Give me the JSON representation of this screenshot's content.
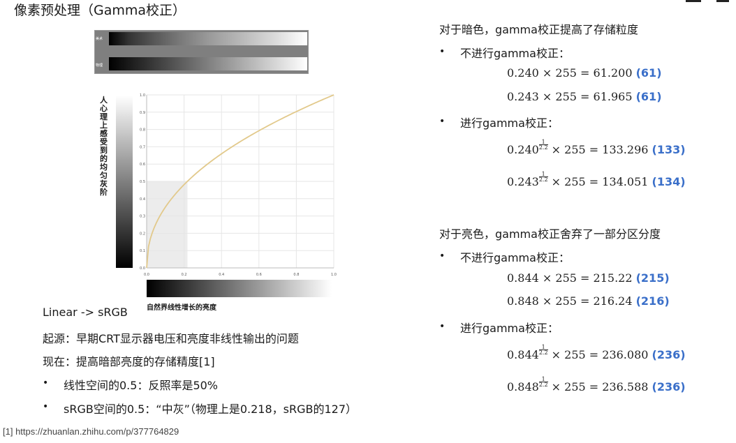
{
  "title": "像素预处理（Gamma校正）",
  "top_bars": {
    "top_label": "美术",
    "bottom_label": "物理"
  },
  "chart": {
    "ylabel": "人心理上感受到的均匀灰阶",
    "xlabel": "自然界线性增长的亮度"
  },
  "chart_data": {
    "type": "line",
    "xlim": [
      0,
      1.0
    ],
    "ylim": [
      0,
      1.0
    ],
    "xticks": [
      "0.0",
      "0.2",
      "0.4",
      "0.6",
      "0.8",
      "1.0"
    ],
    "yticks": [
      "0.0",
      "0.1",
      "0.2",
      "0.3",
      "0.4",
      "0.5",
      "0.6",
      "0.7",
      "0.8",
      "0.9",
      "1.0"
    ],
    "grid": true,
    "gamma": 2.2,
    "curve_color": "#e2c98b",
    "highlight": {
      "x": 0.218,
      "y": 0.5
    }
  },
  "left": {
    "heading": "Linear -> sRGB",
    "origin": "起源：早期CRT显示器电压和亮度非线性输出的问题",
    "now": "现在：提高暗部亮度的存储精度[1]",
    "bullets": [
      "线性空间的0.5：反照率是50%",
      "sRGB空间的0.5：“中灰”（物理上是0.218，sRGB的127）"
    ]
  },
  "right": {
    "dark_heading": "对于暗色，gamma校正提高了存储粒度",
    "bright_heading": "对于亮色，gamma校正舍弃了一部分区分度",
    "no_gamma": "不进行gamma校正：",
    "with_gamma": "进行gamma校正：",
    "times": "× 255 =",
    "exp_num": "1",
    "exp_den": "2.2",
    "dark_plain": [
      {
        "base": "0.240",
        "value": "61.200",
        "result": "(61)"
      },
      {
        "base": "0.243",
        "value": "61.965",
        "result": "(61)"
      }
    ],
    "dark_gamma": [
      {
        "base": "0.240",
        "value": "133.296",
        "result": "(133)"
      },
      {
        "base": "0.243",
        "value": "134.051",
        "result": "(134)"
      }
    ],
    "bright_plain": [
      {
        "base": "0.844",
        "value": "215.22",
        "result": "(215)"
      },
      {
        "base": "0.848",
        "value": "216.24",
        "result": "(216)"
      }
    ],
    "bright_gamma": [
      {
        "base": "0.844",
        "value": "236.080",
        "result": "(236)"
      },
      {
        "base": "0.848",
        "value": "236.588",
        "result": "(236)"
      }
    ]
  },
  "footnote": "[1] https://zhuanlan.zhihu.com/p/377764829",
  "bullet_symbol": "•"
}
